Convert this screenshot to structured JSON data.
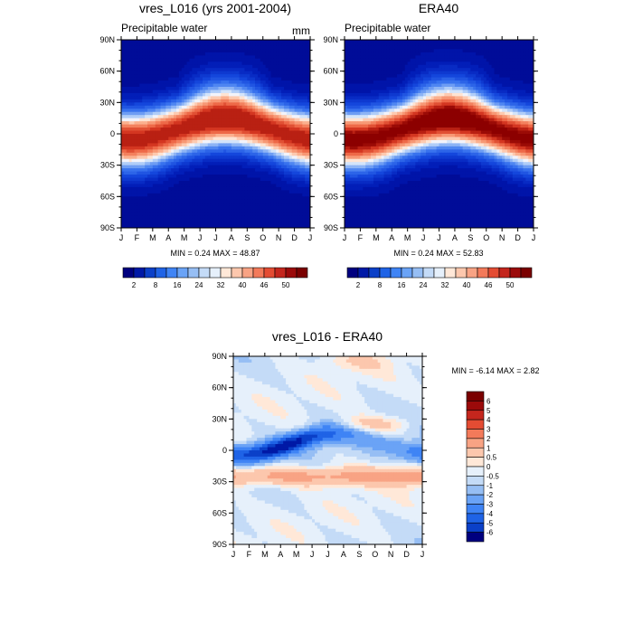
{
  "colors": {
    "diverging_palette": [
      "#00007f",
      "#0019a6",
      "#0b40c8",
      "#1f63e6",
      "#3f84f5",
      "#6aa3f6",
      "#96bef4",
      "#c4dbf7",
      "#e6f0fb",
      "#ffe8d8",
      "#fcc7ad",
      "#f8a384",
      "#f37a5a",
      "#e44c33",
      "#c4261d",
      "#9b0a0a",
      "#7a0000"
    ]
  },
  "panels": [
    {
      "title": "vres_L016 (yrs 2001-2004)",
      "subtitle_left": "Precipitable water",
      "subtitle_right": "mm",
      "min_max": "MIN =   0.24 MAX =  48.87",
      "x_ticks": [
        "J",
        "F",
        "M",
        "A",
        "M",
        "J",
        "J",
        "A",
        "S",
        "O",
        "N",
        "D",
        "J"
      ],
      "y_ticks": [
        "90N",
        "60N",
        "30N",
        "0",
        "30S",
        "60S",
        "90S"
      ],
      "colorbar_labels": [
        "2",
        "8",
        "16",
        "24",
        "32",
        "40",
        "46",
        "50"
      ]
    },
    {
      "title": "ERA40",
      "subtitle_left": "Precipitable water",
      "subtitle_right": "",
      "min_max": "MIN =   0.24 MAX =  52.83",
      "x_ticks": [
        "J",
        "F",
        "M",
        "A",
        "M",
        "J",
        "J",
        "A",
        "S",
        "O",
        "N",
        "D",
        "J"
      ],
      "y_ticks": [
        "90N",
        "60N",
        "30N",
        "0",
        "30S",
        "60S",
        "90S"
      ],
      "colorbar_labels": [
        "2",
        "8",
        "16",
        "24",
        "32",
        "40",
        "46",
        "50"
      ]
    },
    {
      "title": "vres_L016 - ERA40",
      "min_max": "MIN =  -6.14 MAX =   2.82",
      "x_ticks": [
        "J",
        "F",
        "M",
        "A",
        "M",
        "J",
        "J",
        "A",
        "S",
        "O",
        "N",
        "D",
        "J"
      ],
      "y_ticks": [
        "90N",
        "60N",
        "30N",
        "0",
        "30S",
        "60S",
        "90S"
      ],
      "colorbar_labels": [
        "6",
        "5",
        "4",
        "3",
        "2",
        "1",
        "0.5",
        "0",
        "-0.5",
        "-1",
        "-2",
        "-3",
        "-4",
        "-5",
        "-6"
      ]
    }
  ],
  "chart_data": [
    {
      "type": "heatmap",
      "title": "vres_L016 (yrs 2001-2004)",
      "subtitle": "Precipitable water",
      "units": "mm",
      "x": [
        "J",
        "F",
        "M",
        "A",
        "M",
        "J",
        "J",
        "A",
        "S",
        "O",
        "N",
        "D",
        "J"
      ],
      "y": [
        "90N",
        "60N",
        "30N",
        "0",
        "30S",
        "60S",
        "90S"
      ],
      "min": 0.24,
      "max": 48.87,
      "levels": [
        2,
        4,
        6,
        8,
        10,
        12,
        14,
        16,
        18,
        20,
        22,
        24,
        26,
        28,
        30,
        32,
        34,
        36,
        38,
        40,
        42,
        44,
        46,
        48,
        50
      ],
      "zonal_peak_lat": 5,
      "seasonal_peak_month": "Aug"
    },
    {
      "type": "heatmap",
      "title": "ERA40",
      "subtitle": "Precipitable water",
      "x": [
        "J",
        "F",
        "M",
        "A",
        "M",
        "J",
        "J",
        "A",
        "S",
        "O",
        "N",
        "D",
        "J"
      ],
      "y": [
        "90N",
        "60N",
        "30N",
        "0",
        "30S",
        "60S",
        "90S"
      ],
      "min": 0.24,
      "max": 52.83,
      "levels": [
        2,
        4,
        6,
        8,
        10,
        12,
        14,
        16,
        18,
        20,
        22,
        24,
        26,
        28,
        30,
        32,
        34,
        36,
        38,
        40,
        42,
        44,
        46,
        48,
        50
      ],
      "zonal_peak_lat": 5,
      "seasonal_peak_month": "Aug"
    },
    {
      "type": "heatmap",
      "title": "vres_L016 - ERA40",
      "x": [
        "J",
        "F",
        "M",
        "A",
        "M",
        "J",
        "J",
        "A",
        "S",
        "O",
        "N",
        "D",
        "J"
      ],
      "y": [
        "90N",
        "60N",
        "30N",
        "0",
        "30S",
        "60S",
        "90S"
      ],
      "min": -6.14,
      "max": 2.82,
      "levels": [
        -6,
        -5,
        -4,
        -3,
        -2,
        -1,
        -0.5,
        0,
        0.5,
        1,
        2,
        3,
        4,
        5,
        6
      ]
    }
  ]
}
